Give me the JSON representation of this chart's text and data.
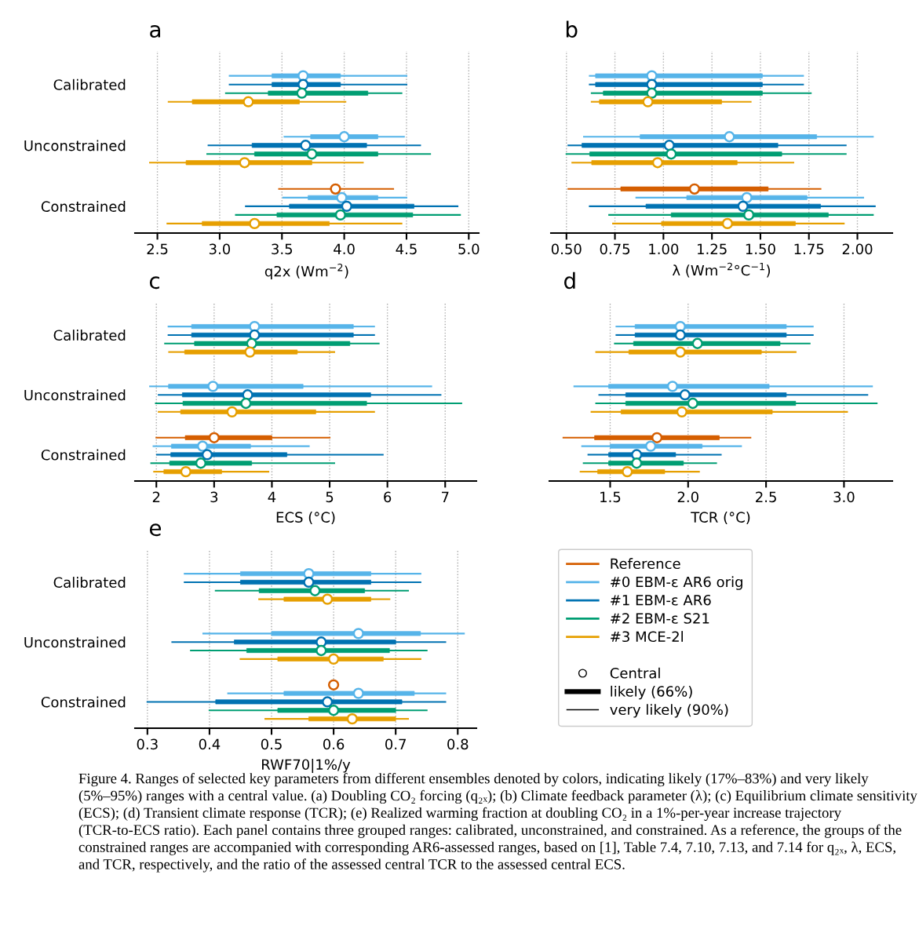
{
  "chart_data": [
    {
      "type": "box",
      "orientation": "horizontal",
      "title": "a",
      "xlabel": "q2x (Wm$^{−2}$)",
      "categories": [
        "Calibrated",
        "Unconstrained",
        "Constrained"
      ],
      "xlim": [
        2.32,
        5.08
      ],
      "xticks": [
        2.5,
        {
          "value": 3,
          "label": "3.0"
        },
        3.5,
        {
          "value": 4,
          "label": "4.0"
        },
        4.5,
        {
          "value": 5,
          "label": "5.0"
        }
      ],
      "grid": "x",
      "legend": false,
      "series": [
        {
          "type": "scatter",
          "color": "#d55e00",
          "values": [
            null,
            null,
            3.93
          ],
          "errors": [
            null,
            null,
            [
              3.47,
              4.4
            ]
          ]
        },
        {
          "color": "#56b4e9",
          "boxes": [
            {
              "low": 3.08,
              "q1": 3.42,
              "median": 3.67,
              "q3": 3.97,
              "high": 4.5
            },
            {
              "low": 3.52,
              "q1": 3.73,
              "median": 4.0,
              "q3": 4.27,
              "high": 4.48
            },
            {
              "low": 3.51,
              "q1": 3.71,
              "median": 3.98,
              "q3": 4.27,
              "high": 4.5
            }
          ]
        },
        {
          "color": "#0072b2",
          "boxes": [
            {
              "low": 3.08,
              "q1": 3.42,
              "median": 3.67,
              "q3": 3.97,
              "high": 4.5
            },
            {
              "low": 2.91,
              "q1": 3.26,
              "median": 3.69,
              "q3": 4.18,
              "high": 4.61
            },
            {
              "low": 3.21,
              "q1": 3.56,
              "median": 4.02,
              "q3": 4.56,
              "high": 4.91
            }
          ]
        },
        {
          "color": "#009e73",
          "boxes": [
            {
              "low": 3.05,
              "q1": 3.39,
              "median": 3.66,
              "q3": 4.19,
              "high": 4.46
            },
            {
              "low": 2.9,
              "q1": 3.28,
              "median": 3.74,
              "q3": 4.27,
              "high": 4.69
            },
            {
              "low": 3.13,
              "q1": 3.46,
              "median": 3.97,
              "q3": 4.55,
              "high": 4.93
            }
          ]
        },
        {
          "color": "#e69f00",
          "boxes": [
            {
              "low": 2.59,
              "q1": 2.78,
              "median": 3.23,
              "q3": 3.64,
              "high": 4.01
            },
            {
              "low": 2.44,
              "q1": 2.73,
              "median": 3.2,
              "q3": 3.74,
              "high": 4.15
            },
            {
              "low": 2.58,
              "q1": 2.86,
              "median": 3.28,
              "q3": 3.88,
              "high": 4.46
            }
          ]
        }
      ]
    },
    {
      "type": "box",
      "orientation": "horizontal",
      "title": "b",
      "xlabel": "λ (Wm$^{−2}$°C$^{−1}$)",
      "categories": [
        null,
        null,
        null
      ],
      "xlim": [
        0.42,
        2.18
      ],
      "tick_labels": "x",
      "xticks": [
        {
          "value": 0.5,
          "label": "0.50"
        },
        {
          "value": 0.75,
          "label": "0.75"
        },
        {
          "value": 1,
          "label": "1.00"
        },
        {
          "value": 1.25,
          "label": "1.25"
        },
        {
          "value": 1.5,
          "label": "1.50"
        },
        {
          "value": 1.75,
          "label": "1.75"
        },
        {
          "value": 2,
          "label": "2.00"
        }
      ],
      "grid": "x",
      "legend": false,
      "series": [
        {
          "color": "#d55e00",
          "boxes": [
            null,
            null,
            {
              "low": 0.51,
              "q1": 0.78,
              "median": 1.16,
              "q3": 1.54,
              "high": 1.81
            }
          ]
        },
        {
          "color": "#56b4e9",
          "boxes": [
            {
              "low": 0.62,
              "q1": 0.65,
              "median": 0.94,
              "q3": 1.51,
              "high": 1.72
            },
            {
              "low": 0.59,
              "q1": 0.88,
              "median": 1.34,
              "q3": 1.79,
              "high": 2.08
            },
            {
              "low": 0.86,
              "q1": 1.12,
              "median": 1.43,
              "q3": 1.74,
              "high": 2.03
            }
          ]
        },
        {
          "color": "#0072b2",
          "boxes": [
            {
              "low": 0.62,
              "q1": 0.65,
              "median": 0.94,
              "q3": 1.51,
              "high": 1.72
            },
            {
              "low": 0.51,
              "q1": 0.58,
              "median": 1.03,
              "q3": 1.59,
              "high": 1.94
            },
            {
              "low": 0.62,
              "q1": 0.91,
              "median": 1.41,
              "q3": 1.81,
              "high": 2.09
            }
          ]
        },
        {
          "color": "#009e73",
          "boxes": [
            {
              "low": 0.63,
              "q1": 0.69,
              "median": 0.94,
              "q3": 1.51,
              "high": 1.76
            },
            {
              "low": 0.5,
              "q1": 0.62,
              "median": 1.04,
              "q3": 1.61,
              "high": 1.94
            },
            {
              "low": 0.72,
              "q1": 1.04,
              "median": 1.44,
              "q3": 1.85,
              "high": 2.08
            }
          ]
        },
        {
          "color": "#e69f00",
          "boxes": [
            {
              "low": 0.63,
              "q1": 0.67,
              "median": 0.92,
              "q3": 1.3,
              "high": 1.45
            },
            {
              "low": 0.53,
              "q1": 0.63,
              "median": 0.97,
              "q3": 1.38,
              "high": 1.67
            },
            {
              "low": 0.74,
              "q1": 0.99,
              "median": 1.33,
              "q3": 1.68,
              "high": 1.93
            }
          ]
        }
      ]
    },
    {
      "type": "box",
      "orientation": "horizontal",
      "title": "c",
      "xlabel": "ECS (°C)",
      "categories": [
        "Calibrated",
        "Unconstrained",
        "Constrained"
      ],
      "xlim": [
        1.63,
        7.54
      ],
      "xticks": [
        2,
        3,
        4,
        5,
        6,
        7
      ],
      "grid": "x",
      "legend": false,
      "series": [
        {
          "color": "#d55e00",
          "boxes": [
            null,
            null,
            {
              "low": 2.0,
              "q1": 2.5,
              "median": 3.0,
              "q3": 4.0,
              "high": 5.0
            }
          ]
        },
        {
          "color": "#56b4e9",
          "boxes": [
            {
              "low": 2.21,
              "q1": 2.61,
              "median": 3.7,
              "q3": 5.41,
              "high": 5.77
            },
            {
              "low": 1.89,
              "q1": 2.21,
              "median": 2.98,
              "q3": 4.54,
              "high": 6.76
            },
            {
              "low": 1.95,
              "q1": 2.26,
              "median": 2.8,
              "q3": 3.63,
              "high": 4.64
            }
          ]
        },
        {
          "color": "#0072b2",
          "boxes": [
            {
              "low": 2.21,
              "q1": 2.61,
              "median": 3.7,
              "q3": 5.41,
              "high": 5.77
            },
            {
              "low": 2.04,
              "q1": 2.45,
              "median": 3.58,
              "q3": 5.71,
              "high": 6.92
            },
            {
              "low": 2.01,
              "q1": 2.25,
              "median": 2.88,
              "q3": 4.26,
              "high": 5.92
            }
          ]
        },
        {
          "color": "#009e73",
          "boxes": [
            {
              "low": 2.15,
              "q1": 2.66,
              "median": 3.65,
              "q3": 5.35,
              "high": 5.85
            },
            {
              "low": 1.99,
              "q1": 2.46,
              "median": 3.55,
              "q3": 5.64,
              "high": 7.28
            },
            {
              "low": 1.91,
              "q1": 2.23,
              "median": 2.77,
              "q3": 3.65,
              "high": 5.08
            }
          ]
        },
        {
          "color": "#e69f00",
          "boxes": [
            {
              "low": 2.22,
              "q1": 2.49,
              "median": 3.62,
              "q3": 4.44,
              "high": 5.08
            },
            {
              "low": 2.04,
              "q1": 2.42,
              "median": 3.31,
              "q3": 4.76,
              "high": 5.77
            },
            {
              "low": 1.96,
              "q1": 2.13,
              "median": 2.51,
              "q3": 3.13,
              "high": 3.94
            }
          ]
        }
      ]
    },
    {
      "type": "box",
      "orientation": "horizontal",
      "title": "d",
      "xlabel": "TCR (°C)",
      "categories": [
        null,
        null,
        null
      ],
      "xlim": [
        1.11,
        3.31
      ],
      "tick_labels": "x",
      "xticks": [
        1.5,
        {
          "value": 2,
          "label": "2.0"
        },
        2.5,
        {
          "value": 3,
          "label": "3.0"
        }
      ],
      "grid": "x",
      "legend": false,
      "series": [
        {
          "color": "#d55e00",
          "boxes": [
            null,
            null,
            {
              "low": 1.2,
              "q1": 1.4,
              "median": 1.8,
              "q3": 2.2,
              "high": 2.4
            }
          ]
        },
        {
          "color": "#56b4e9",
          "boxes": [
            {
              "low": 1.54,
              "q1": 1.66,
              "median": 1.95,
              "q3": 2.63,
              "high": 2.8
            },
            {
              "low": 1.27,
              "q1": 1.49,
              "median": 1.9,
              "q3": 2.52,
              "high": 3.18
            },
            {
              "low": 1.32,
              "q1": 1.5,
              "median": 1.76,
              "q3": 2.09,
              "high": 2.34
            }
          ]
        },
        {
          "color": "#0072b2",
          "boxes": [
            {
              "low": 1.54,
              "q1": 1.66,
              "median": 1.95,
              "q3": 2.63,
              "high": 2.8
            },
            {
              "low": 1.43,
              "q1": 1.6,
              "median": 1.98,
              "q3": 2.63,
              "high": 3.15
            },
            {
              "low": 1.36,
              "q1": 1.49,
              "median": 1.67,
              "q3": 1.92,
              "high": 2.21
            }
          ]
        },
        {
          "color": "#009e73",
          "boxes": [
            {
              "low": 1.53,
              "q1": 1.65,
              "median": 2.06,
              "q3": 2.59,
              "high": 2.78
            },
            {
              "low": 1.41,
              "q1": 1.6,
              "median": 2.03,
              "q3": 2.69,
              "high": 3.21
            },
            {
              "low": 1.33,
              "q1": 1.49,
              "median": 1.67,
              "q3": 1.97,
              "high": 2.18
            }
          ]
        },
        {
          "color": "#e69f00",
          "boxes": [
            {
              "low": 1.41,
              "q1": 1.62,
              "median": 1.95,
              "q3": 2.47,
              "high": 2.69
            },
            {
              "low": 1.38,
              "q1": 1.57,
              "median": 1.96,
              "q3": 2.54,
              "high": 3.02
            },
            {
              "low": 1.31,
              "q1": 1.42,
              "median": 1.61,
              "q3": 1.85,
              "high": 2.07
            }
          ]
        }
      ]
    },
    {
      "type": "box",
      "orientation": "horizontal",
      "title": "e",
      "xlabel": "RWF70|1%/y",
      "categories": [
        "Calibrated",
        "Unconstrained",
        "Constrained"
      ],
      "xlim": [
        0.28,
        0.83
      ],
      "xticks": [
        0.3,
        0.4,
        0.5,
        0.6,
        0.7,
        0.8
      ],
      "grid": "x",
      "legend": "right",
      "series": [
        {
          "type": "scatter",
          "name": "Reference",
          "color": "#d55e00",
          "values": [
            null,
            null,
            0.6
          ]
        },
        {
          "name": "#0 EBM-ε AR6 orig",
          "color": "#56b4e9",
          "boxes": [
            {
              "low": 0.36,
              "q1": 0.45,
              "median": 0.56,
              "q3": 0.66,
              "high": 0.74
            },
            {
              "low": 0.39,
              "q1": 0.5,
              "median": 0.64,
              "q3": 0.74,
              "high": 0.81
            },
            {
              "low": 0.43,
              "q1": 0.52,
              "median": 0.64,
              "q3": 0.73,
              "high": 0.78
            }
          ]
        },
        {
          "name": "#1 EBM-ε AR6",
          "color": "#0072b2",
          "boxes": [
            {
              "low": 0.36,
              "q1": 0.45,
              "median": 0.56,
              "q3": 0.66,
              "high": 0.74
            },
            {
              "low": 0.34,
              "q1": 0.44,
              "median": 0.58,
              "q3": 0.7,
              "high": 0.78
            },
            {
              "low": 0.3,
              "q1": 0.41,
              "median": 0.59,
              "q3": 0.71,
              "high": 0.78
            }
          ]
        },
        {
          "name": "#2 EBM-ε S21",
          "color": "#009e73",
          "boxes": [
            {
              "low": 0.41,
              "q1": 0.48,
              "median": 0.57,
              "q3": 0.65,
              "high": 0.72
            },
            {
              "low": 0.37,
              "q1": 0.46,
              "median": 0.58,
              "q3": 0.69,
              "high": 0.75
            },
            {
              "low": 0.4,
              "q1": 0.51,
              "median": 0.6,
              "q3": 0.7,
              "high": 0.75
            }
          ]
        },
        {
          "name": "#3 MCE-2l",
          "color": "#e69f00",
          "boxes": [
            {
              "low": 0.48,
              "q1": 0.52,
              "median": 0.59,
              "q3": 0.66,
              "high": 0.69
            },
            {
              "low": 0.45,
              "q1": 0.51,
              "median": 0.6,
              "q3": 0.68,
              "high": 0.74
            },
            {
              "low": 0.49,
              "q1": 0.56,
              "median": 0.63,
              "q3": 0.7,
              "high": 0.72
            }
          ]
        }
      ],
      "annotations": [
        "Central",
        "likely (66%)",
        "very likely (90%)",
        "Figure 4. Ranges of selected key parameters from different ensembles denoted by colors, indicating likely (17%–83%) and very likely (5%–95%) ranges with a central value. (a) Doubling CO₂ forcing (q₂ₓ); (b) Climate feedback parameter (λ); (c) Equilibrium climate sensitivity (ECS); (d) Transient climate response (TCR); (e) Realized warming fraction at doubling CO₂ in a 1%-per-year increase trajectory (TCR-to-ECS ratio). Each panel contains three grouped ranges: calibrated, unconstrained, and constrained. As a reference, the groups of the constrained ranges are accompanied with corresponding AR6-assessed ranges, based on [1], Table 7.4, 7.10, 7.13, and 7.14 for q₂ₓ, λ, ECS, and TCR, respectively, and the ratio of the assessed central TCR to the assessed central ECS."
      ]
    }
  ]
}
